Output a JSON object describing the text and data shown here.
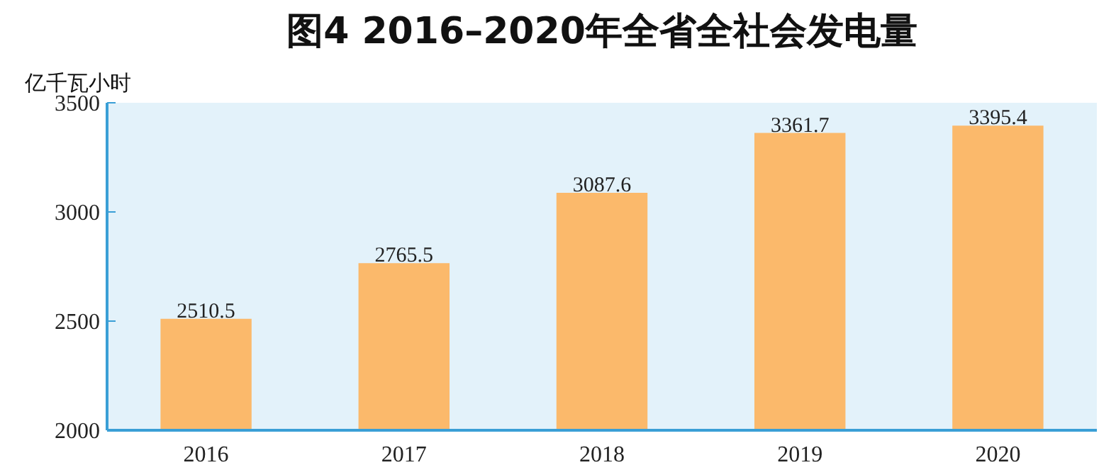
{
  "chart_data": {
    "type": "bar",
    "title": "图4 2016–2020年全省全社会发电量",
    "ylabel": "亿千瓦小时",
    "categories": [
      "2016",
      "2017",
      "2018",
      "2019",
      "2020"
    ],
    "values": [
      2510.5,
      2765.5,
      3087.6,
      3361.7,
      3395.4
    ],
    "color": "#fbb96b",
    "ylim": [
      2000,
      3500
    ],
    "yticks": [
      2000,
      2500,
      3000,
      3500
    ],
    "data_labels": true,
    "grid": false
  }
}
